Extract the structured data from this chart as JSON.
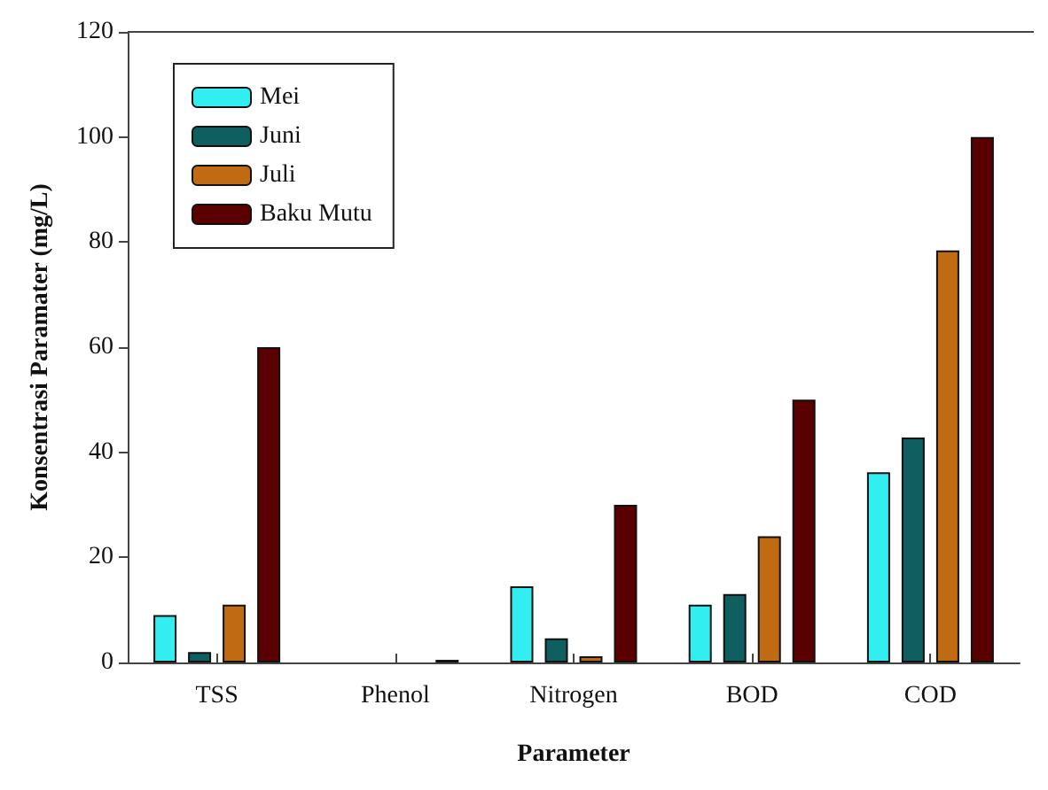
{
  "chart_data": {
    "type": "bar",
    "xlabel": "Parameter",
    "ylabel": "Konsentrasi Paramater (mg/L)",
    "categories": [
      "TSS",
      "Phenol",
      "Nitrogen",
      "BOD",
      "COD"
    ],
    "series": [
      {
        "name": "Mei",
        "color": "#33eef0",
        "values": [
          9,
          null,
          14.5,
          11,
          36.2
        ]
      },
      {
        "name": "Juni",
        "color": "#0f5e60",
        "values": [
          2,
          null,
          4.6,
          13,
          42.8
        ]
      },
      {
        "name": "Juli",
        "color": "#c06a12",
        "values": [
          11,
          null,
          1.2,
          24,
          78.4
        ]
      },
      {
        "name": "Baku Mutu",
        "color": "#5a0000",
        "values": [
          60,
          0.5,
          30,
          50,
          100
        ]
      }
    ],
    "ylim": [
      0,
      120
    ],
    "yticks": [
      0,
      20,
      40,
      60,
      80,
      100,
      120
    ],
    "grid": false,
    "legend": "top left"
  }
}
